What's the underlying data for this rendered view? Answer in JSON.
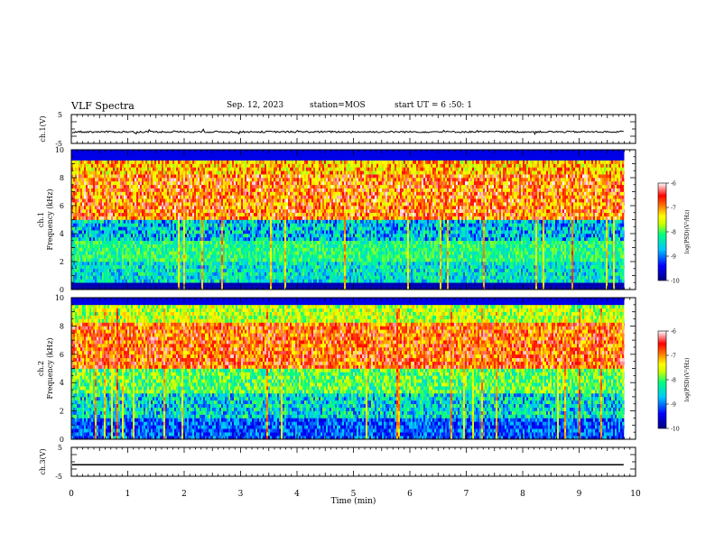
{
  "header": {
    "title": "VLF Spectra",
    "date": "Sep. 12, 2023",
    "station": "station=MOS",
    "start": "start  UT  =   6  :50: 1"
  },
  "chart_data": {
    "type": "heatmap",
    "x_axis": {
      "label": "Time  (min)",
      "range": [
        0,
        10
      ],
      "ticks": [
        "0",
        "1",
        "2",
        "3",
        "4",
        "5",
        "6",
        "7",
        "8",
        "9",
        "10"
      ]
    },
    "panels": [
      {
        "id": "ch1_waveform",
        "type": "line",
        "ylabel": "ch.1(V)",
        "ylim": [
          -5,
          5
        ],
        "yticks": [
          "5",
          "-5"
        ],
        "level": -1
      },
      {
        "id": "ch1_spectrogram",
        "type": "heatmap",
        "ylabel_top": "ch.1",
        "ylabel": "Frequency  (kHz)",
        "ylim": [
          0,
          10
        ],
        "yticks": [
          "0",
          "2",
          "4",
          "6",
          "8",
          "10"
        ],
        "colorbar": {
          "label": "log(PSD)(V²/Hz)",
          "range": [
            -10,
            -6
          ],
          "ticks": [
            "-6",
            "-7",
            "-8",
            "-9",
            "-10"
          ]
        }
      },
      {
        "id": "ch2_spectrogram",
        "type": "heatmap",
        "ylabel_top": "ch.2",
        "ylabel": "Frequency  (kHz)",
        "ylim": [
          0,
          10
        ],
        "yticks": [
          "0",
          "2",
          "4",
          "6",
          "8",
          "10"
        ],
        "colorbar": {
          "label": "log(PSD)(V²/Hz)",
          "range": [
            -10,
            -6
          ],
          "ticks": [
            "-6",
            "-7",
            "-8",
            "-9",
            "-10"
          ]
        }
      },
      {
        "id": "ch3_waveform",
        "type": "line",
        "ylabel": "ch.3(V)",
        "ylim": [
          -5,
          5
        ],
        "yticks": [
          "5",
          "-5"
        ],
        "level": -1
      }
    ],
    "data_end_min": 9.8,
    "colormap": [
      "#000080",
      "#0000ff",
      "#00c8ff",
      "#00ff80",
      "#c8ff00",
      "#ffff00",
      "#ff8000",
      "#ff0000",
      "#ffffff"
    ]
  }
}
